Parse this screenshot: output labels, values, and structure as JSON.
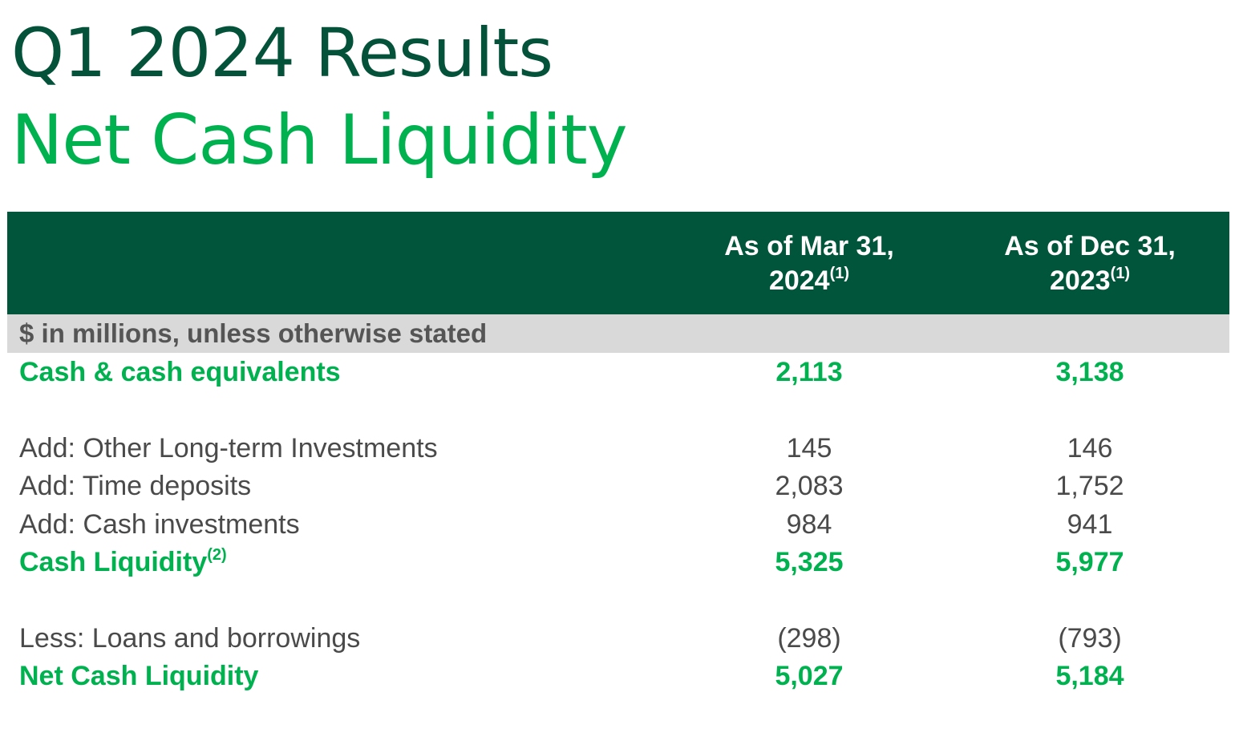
{
  "title_line1": "Q1 2024 Results",
  "title_line2": "Net Cash Liquidity",
  "colors": {
    "dark_green": "#00553a",
    "bright_green": "#00b14f",
    "units_bar": "#d9d9d9",
    "body_text": "#4a4a4a"
  },
  "table": {
    "headers": {
      "col1_line1": "As of Mar 31,",
      "col1_line2": "2024",
      "col1_note": "(1)",
      "col2_line1": "As of Dec 31,",
      "col2_line2": "2023",
      "col2_note": "(1)"
    },
    "units": "$ in millions, unless otherwise stated",
    "rows": [
      {
        "label": "Cash & cash equivalents",
        "note": "",
        "mar_2024": "2,113",
        "dec_2023": "3,138",
        "style": "bold"
      },
      {
        "label": "Add: Other Long-term Investments",
        "note": "",
        "mar_2024": "145",
        "dec_2023": "146",
        "style": "plain"
      },
      {
        "label": "Add: Time deposits",
        "note": "",
        "mar_2024": "2,083",
        "dec_2023": "1,752",
        "style": "plain"
      },
      {
        "label": "Add: Cash investments",
        "note": "",
        "mar_2024": "984",
        "dec_2023": "941",
        "style": "plain"
      },
      {
        "label": "Cash Liquidity",
        "note": "(2)",
        "mar_2024": "5,325",
        "dec_2023": "5,977",
        "style": "bold"
      },
      {
        "label": "Less: Loans and borrowings",
        "note": "",
        "mar_2024": "(298)",
        "dec_2023": "(793)",
        "style": "plain"
      },
      {
        "label": "Net Cash Liquidity",
        "note": "",
        "mar_2024": "5,027",
        "dec_2023": "5,184",
        "style": "bold"
      }
    ]
  }
}
